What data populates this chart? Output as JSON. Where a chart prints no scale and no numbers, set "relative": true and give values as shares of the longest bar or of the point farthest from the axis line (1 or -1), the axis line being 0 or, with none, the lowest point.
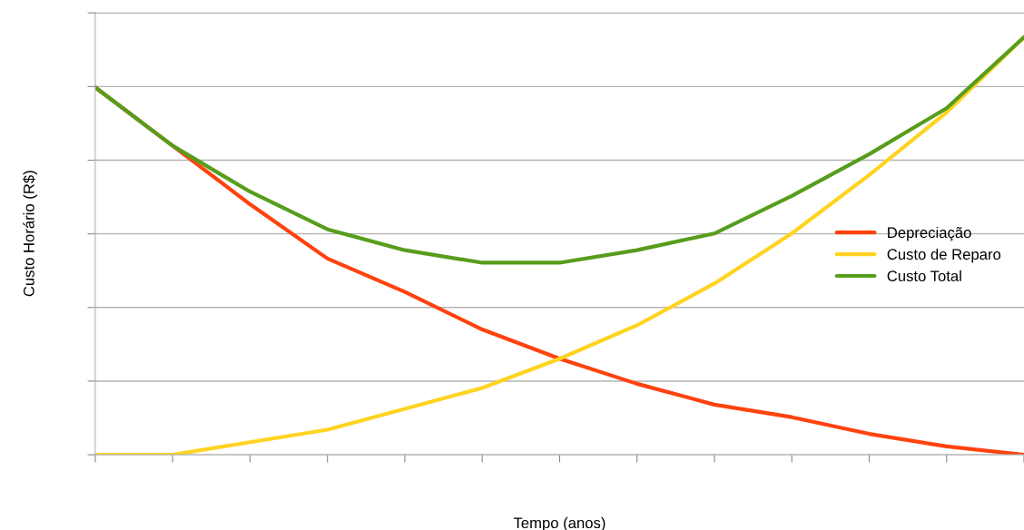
{
  "chart_data": {
    "type": "line",
    "xlabel": "Tempo (anos)",
    "ylabel": "Custo Horário (R$)",
    "relative": true,
    "categories": [
      null,
      null,
      null,
      null,
      null,
      null,
      null,
      null,
      null,
      null,
      null,
      null,
      null
    ],
    "series": [
      {
        "name": "Depreciação",
        "color": "#ff420e",
        "values": [
          0.88,
          0.74,
          0.6,
          0.47,
          0.39,
          0.3,
          0.23,
          0.17,
          0.12,
          0.09,
          0.05,
          0.02,
          0
        ]
      },
      {
        "name": "Custo de Reparo",
        "color": "#ffd320",
        "values": [
          0,
          0,
          0.03,
          0.06,
          0.11,
          0.16,
          0.23,
          0.31,
          0.41,
          0.53,
          0.67,
          0.82,
          1
        ]
      },
      {
        "name": "Custo Total",
        "color": "#579d1c",
        "values": [
          0.88,
          0.74,
          0.63,
          0.54,
          0.49,
          0.46,
          0.46,
          0.49,
          0.53,
          0.62,
          0.72,
          0.83,
          1
        ]
      }
    ],
    "grid": "y",
    "legend": "center right",
    "marker": "none",
    "line_style": "solid"
  }
}
